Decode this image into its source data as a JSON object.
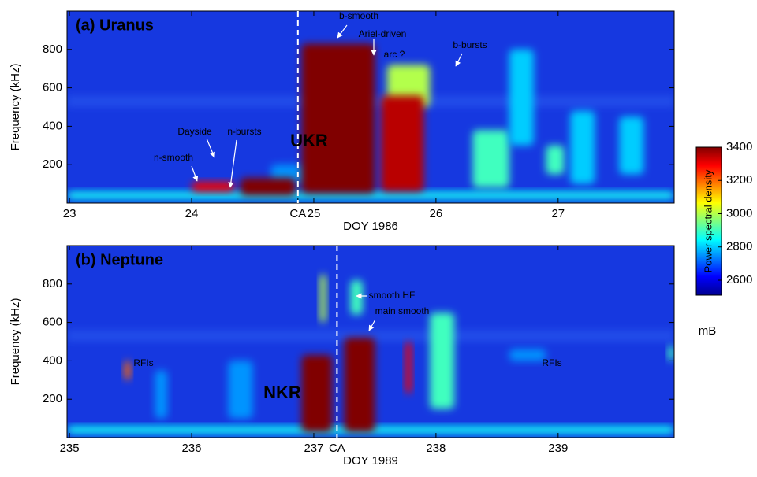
{
  "chart_data": [
    {
      "type": "spectrogram",
      "title": "(a) Uranus",
      "xlabel": "DOY 1986",
      "ylabel": "Frequency (kHz)",
      "xlim": [
        22.98,
        27.95
      ],
      "xticks": [
        23,
        24,
        {
          "value": 24.87,
          "label": "CA"
        },
        25,
        26,
        27
      ],
      "ylim": [
        0,
        1000
      ],
      "yticks": [
        200,
        400,
        600,
        800
      ],
      "annotations": [
        "n-smooth",
        "Dayside",
        "n-bursts",
        "UKR",
        "b-smooth",
        "Ariel-driven",
        "arc ?",
        "b-bursts"
      ],
      "regions": [
        {
          "x": [
            22.98,
            27.95
          ],
          "freq": [
            20,
            60
          ],
          "power": 2850
        },
        {
          "x": [
            24.65,
            24.95
          ],
          "freq": [
            100,
            200
          ],
          "power": 2750
        },
        {
          "x": [
            24.0,
            24.35
          ],
          "freq": [
            60,
            110
          ],
          "power": 3300
        },
        {
          "x": [
            24.4,
            24.85
          ],
          "freq": [
            40,
            130
          ],
          "power": 3400
        },
        {
          "x": [
            24.9,
            25.5
          ],
          "freq": [
            50,
            830
          ],
          "power": 3400
        },
        {
          "x": [
            25.6,
            25.95
          ],
          "freq": [
            500,
            720
          ],
          "power": 3000
        },
        {
          "x": [
            25.55,
            25.9
          ],
          "freq": [
            60,
            560
          ],
          "power": 3350
        },
        {
          "x": [
            26.3,
            26.6
          ],
          "freq": [
            80,
            380
          ],
          "power": 2900
        },
        {
          "x": [
            26.6,
            26.8
          ],
          "freq": [
            300,
            800
          ],
          "power": 2800
        },
        {
          "x": [
            26.9,
            27.05
          ],
          "freq": [
            150,
            300
          ],
          "power": 2900
        },
        {
          "x": [
            27.1,
            27.3
          ],
          "freq": [
            100,
            480
          ],
          "power": 2800
        },
        {
          "x": [
            27.5,
            27.7
          ],
          "freq": [
            150,
            450
          ],
          "power": 2800
        }
      ],
      "colorbar": {
        "label": "Power spectral density",
        "unit": "mB",
        "lim": [
          2510,
          3400
        ],
        "ticks": [
          2600,
          2800,
          3000,
          3200,
          3400
        ]
      }
    },
    {
      "type": "spectrogram",
      "title": "(b) Neptune",
      "xlabel": "DOY 1989",
      "ylabel": "Frequency (kHz)",
      "xlim": [
        234.98,
        239.95
      ],
      "xticks": [
        235,
        236,
        237,
        {
          "value": 237.19,
          "label": "CA"
        },
        238,
        239
      ],
      "ylim": [
        0,
        1000
      ],
      "yticks": [
        200,
        400,
        600,
        800
      ],
      "annotations": [
        "RFIs",
        "NKR",
        "smooth HF",
        "main smooth",
        "RFIs"
      ],
      "regions": [
        {
          "x": [
            234.98,
            239.95
          ],
          "freq": [
            20,
            60
          ],
          "power": 2850
        },
        {
          "x": [
            236.3,
            236.5
          ],
          "freq": [
            100,
            400
          ],
          "power": 2750
        },
        {
          "x": [
            235.7,
            235.8
          ],
          "freq": [
            100,
            350
          ],
          "power": 2750
        },
        {
          "x": [
            236.9,
            237.15
          ],
          "freq": [
            30,
            430
          ],
          "power": 3400
        },
        {
          "x": [
            237.25,
            237.5
          ],
          "freq": [
            30,
            520
          ],
          "power": 3400
        },
        {
          "x": [
            237.05,
            237.1
          ],
          "freq": [
            600,
            850
          ],
          "power": 3000
        },
        {
          "x": [
            237.3,
            237.4
          ],
          "freq": [
            640,
            820
          ],
          "power": 2900
        },
        {
          "x": [
            237.75,
            237.8
          ],
          "freq": [
            230,
            500
          ],
          "power": 3300
        },
        {
          "x": [
            237.95,
            238.15
          ],
          "freq": [
            150,
            650
          ],
          "power": 2900
        },
        {
          "x": [
            238.6,
            238.9
          ],
          "freq": [
            400,
            460
          ],
          "power": 2750
        },
        {
          "x": [
            235.45,
            235.5
          ],
          "freq": [
            300,
            400
          ],
          "power": 3200
        },
        {
          "x": [
            239.9,
            239.95
          ],
          "freq": [
            400,
            480
          ],
          "power": 2900
        }
      ]
    }
  ]
}
